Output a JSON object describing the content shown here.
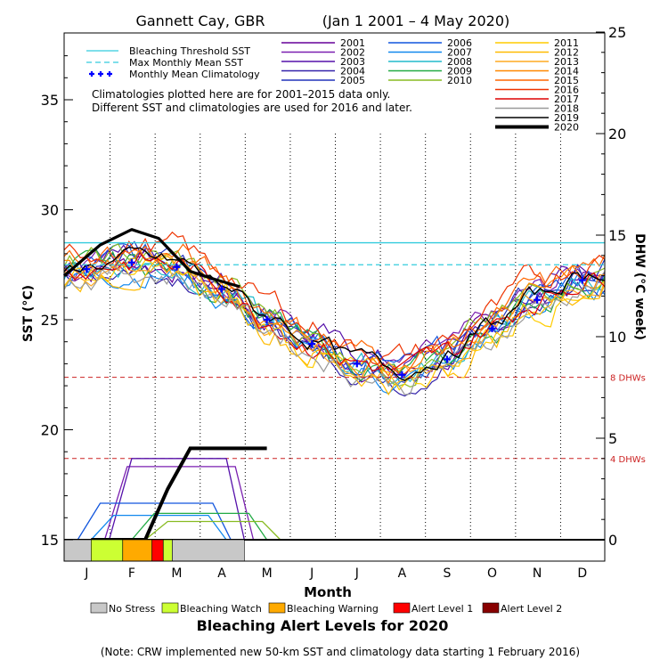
{
  "chart_data": {
    "type": "line",
    "title": "Gannett Cay, GBR",
    "title_dates": "(Jan 1 2001 – 4 May 2020)",
    "xlabel": "Month",
    "ylabel_left": "SST (°C)",
    "ylabel_right": "DHW (°C week)",
    "months": [
      "J",
      "F",
      "M",
      "A",
      "M",
      "J",
      "J",
      "A",
      "S",
      "O",
      "N",
      "D"
    ],
    "sst_ylim": [
      15,
      39
    ],
    "sst_ticks": [
      "15",
      "20",
      "25",
      "30",
      "35"
    ],
    "dhw_ylim": [
      0,
      25
    ],
    "dhw_ticks": [
      "0",
      "5",
      "10",
      "15",
      "20",
      "25"
    ],
    "bleaching_threshold_sst": 28.5,
    "max_monthly_mean_sst": 27.5,
    "dhw_reference_lines": [
      {
        "value": 8,
        "label": "8 DHWs"
      },
      {
        "value": 4,
        "label": "4 DHWs"
      }
    ],
    "legend_lines": [
      {
        "label": "Bleaching Threshold SST",
        "color": "#33ccdd",
        "style": "solid"
      },
      {
        "label": "Max Monthly Mean SST",
        "color": "#33ccdd",
        "style": "dashed"
      },
      {
        "label": "Monthly Mean Climatology",
        "color": "#0000ff",
        "style": "cross"
      }
    ],
    "note_lines": [
      "Climatologies plotted here are for 2001–2015 data only.",
      "Different SST and climatologies are used for 2016 and later."
    ],
    "years": [
      {
        "name": "2001",
        "color": "#660099"
      },
      {
        "name": "2002",
        "color": "#7a1fb0"
      },
      {
        "name": "2003",
        "color": "#5511aa"
      },
      {
        "name": "2004",
        "color": "#3322aa"
      },
      {
        "name": "2005",
        "color": "#2233bb"
      },
      {
        "name": "2006",
        "color": "#1155dd"
      },
      {
        "name": "2007",
        "color": "#1188ee"
      },
      {
        "name": "2008",
        "color": "#22bbcc"
      },
      {
        "name": "2009",
        "color": "#22aa44"
      },
      {
        "name": "2010",
        "color": "#88bb22"
      },
      {
        "name": "2011",
        "color": "#ffcc00"
      },
      {
        "name": "2012",
        "color": "#ffbb00"
      },
      {
        "name": "2013",
        "color": "#ffaa22"
      },
      {
        "name": "2014",
        "color": "#ff8800"
      },
      {
        "name": "2015",
        "color": "#ff6600"
      },
      {
        "name": "2016",
        "color": "#ee3300"
      },
      {
        "name": "2017",
        "color": "#dd0000"
      },
      {
        "name": "2018",
        "color": "#999999"
      },
      {
        "name": "2019",
        "color": "#000000"
      },
      {
        "name": "2020",
        "color": "#000000",
        "bold": true
      }
    ],
    "climatology_mmm": [
      27.3,
      27.6,
      27.4,
      26.4,
      25.0,
      23.9,
      23.0,
      22.5,
      23.2,
      24.6,
      25.9,
      26.8
    ],
    "sst_2020": [
      27.0,
      28.4,
      29.1,
      28.7,
      27.2,
      26.8,
      26.5
    ],
    "sst_2020_x_months": [
      0,
      0.8,
      1.5,
      2.1,
      2.8,
      3.4,
      3.9
    ],
    "dhw_2020": [
      0,
      0,
      2.5,
      4.5,
      4.5,
      4.5
    ],
    "dhw_2020_x_months": [
      0,
      1.2,
      1.7,
      2.2,
      3.0,
      3.9
    ],
    "alert_levels_2020": [
      {
        "level": "No Stress",
        "from": 0,
        "to": 0.6
      },
      {
        "level": "Bleaching Watch",
        "from": 0.6,
        "to": 1.3
      },
      {
        "level": "Bleaching Warning",
        "from": 1.3,
        "to": 1.95
      },
      {
        "level": "Alert Level 1",
        "from": 1.95,
        "to": 2.2
      },
      {
        "level": "Bleaching Watch",
        "from": 2.2,
        "to": 2.4
      },
      {
        "level": "No Stress",
        "from": 2.4,
        "to": 4.0
      }
    ],
    "alert_legend": [
      {
        "label": "No Stress",
        "color": "#c8c8c8"
      },
      {
        "label": "Bleaching Watch",
        "color": "#ccff33"
      },
      {
        "label": "Bleaching Warning",
        "color": "#ffaa00"
      },
      {
        "label": "Alert Level 1",
        "color": "#ff0000"
      },
      {
        "label": "Alert Level 2",
        "color": "#880000"
      }
    ],
    "alert_title": "Bleaching Alert Levels for 2020",
    "footnote": "(Note: CRW implemented new 50-km SST and climatology data starting 1 February 2016)"
  }
}
